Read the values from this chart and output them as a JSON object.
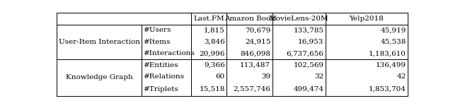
{
  "col_headers": [
    "Last.FM",
    "Amazon Book",
    "MovieLens-20M",
    "Yelp2018"
  ],
  "row_group1_label": "User-Item Interaction",
  "row_group2_label": "Knowledge Graph",
  "row_labels": [
    "#Users",
    "#Items",
    "#Interactions",
    "#Entities",
    "#Relations",
    "#Triplets"
  ],
  "data": [
    [
      "1,815",
      "70,679",
      "133,785",
      "45,919"
    ],
    [
      "3,846",
      "24,915",
      "16,953",
      "45,538"
    ],
    [
      "20,996",
      "846,098",
      "6,737,656",
      "1,183,610"
    ],
    [
      "9,366",
      "113,487",
      "102,569",
      "136,499"
    ],
    [
      "60",
      "39",
      "32",
      "42"
    ],
    [
      "15,518",
      "2,557,746",
      "499,474",
      "1,853,704"
    ]
  ],
  "bg_color": "#ffffff",
  "line_color": "#000000",
  "font_size": 7.5,
  "col_bounds": [
    0,
    155,
    245,
    310,
    393,
    490,
    640
  ],
  "row_bounds": [
    0,
    21,
    43,
    64,
    85,
    107,
    128,
    153
  ]
}
